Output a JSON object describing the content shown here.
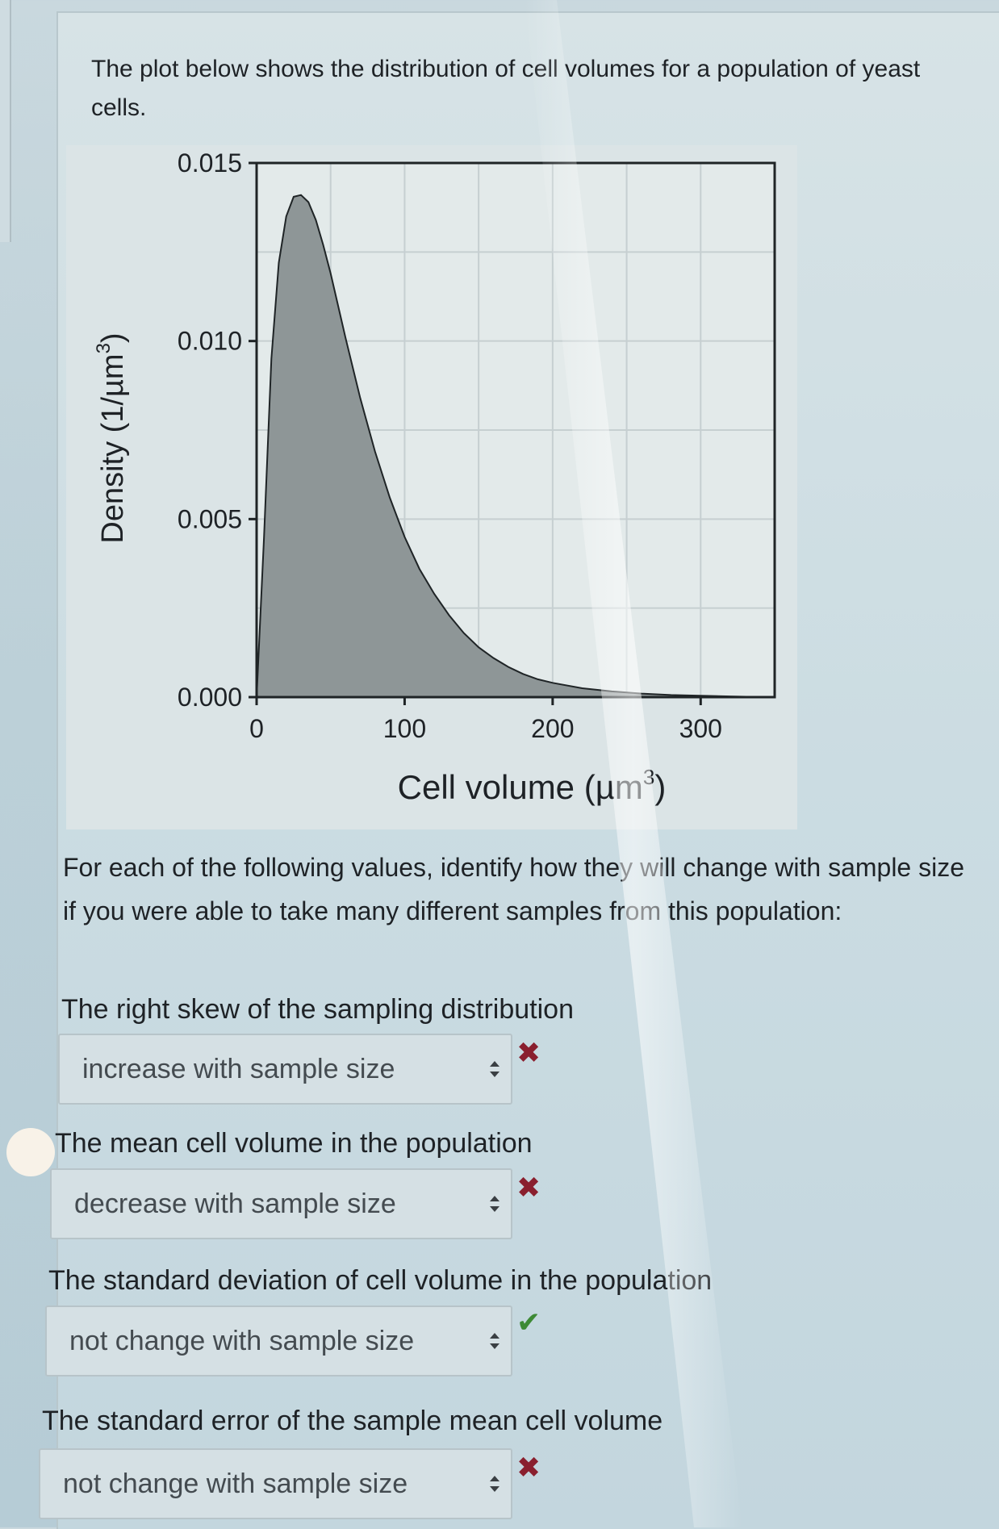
{
  "intro_text": "The plot below shows the distribution of cell volumes for a population of yeast cells.",
  "chart_data": {
    "type": "area",
    "xlabel": "Cell volume (µm",
    "xlabel_sup": "3",
    "xlabel_close": ")",
    "ylabel": "Density (1/µm",
    "ylabel_sup": "3",
    "ylabel_close": ")",
    "xlim": [
      0,
      350
    ],
    "ylim": [
      0,
      0.015
    ],
    "x_ticks": [
      0,
      100,
      200,
      300
    ],
    "x_tick_labels": [
      "0",
      "100",
      "200",
      "300"
    ],
    "y_ticks": [
      0,
      0.005,
      0.01,
      0.015
    ],
    "y_tick_labels": [
      "0.000",
      "0.005",
      "0.010",
      "0.015"
    ],
    "grid": true,
    "fill_color": "#8e9697",
    "x": [
      0,
      5,
      10,
      15,
      20,
      25,
      30,
      35,
      40,
      45,
      50,
      55,
      60,
      70,
      80,
      90,
      100,
      110,
      120,
      130,
      140,
      150,
      160,
      170,
      180,
      190,
      200,
      220,
      240,
      260,
      280,
      300,
      320,
      345
    ],
    "y": [
      0,
      0.0045,
      0.0095,
      0.0122,
      0.0135,
      0.01405,
      0.0141,
      0.0139,
      0.0134,
      0.0127,
      0.0119,
      0.011,
      0.0101,
      0.0084,
      0.0069,
      0.0056,
      0.0045,
      0.0036,
      0.0029,
      0.0023,
      0.0018,
      0.0014,
      0.0011,
      0.00085,
      0.00065,
      0.0005,
      0.0004,
      0.00025,
      0.00016,
      0.0001,
      6e-05,
      4e-05,
      2e-05,
      0.0
    ]
  },
  "question_intro": "For each of the following values, identify how they will change with sample size if you were able to take many different samples from this population:",
  "questions": [
    {
      "label": "The right skew of the sampling distribution",
      "selected": "increase with sample size",
      "result": "✖"
    },
    {
      "label": "The mean cell volume in the population",
      "selected": "decrease with sample size",
      "result": "✖"
    },
    {
      "label": "The standard deviation of cell volume in the population",
      "selected": "not change with sample size",
      "result": "✔"
    },
    {
      "label": "The standard error of the sample mean cell volume",
      "selected": "not change with sample size",
      "result": "✖"
    }
  ],
  "colors": {
    "wrong": "#8a1f2e",
    "right": "#3d8a35"
  },
  "icons": {
    "select_arrows": "up-down-chevron-icon",
    "wrong": "cross-mark-icon",
    "right": "check-mark-icon"
  }
}
